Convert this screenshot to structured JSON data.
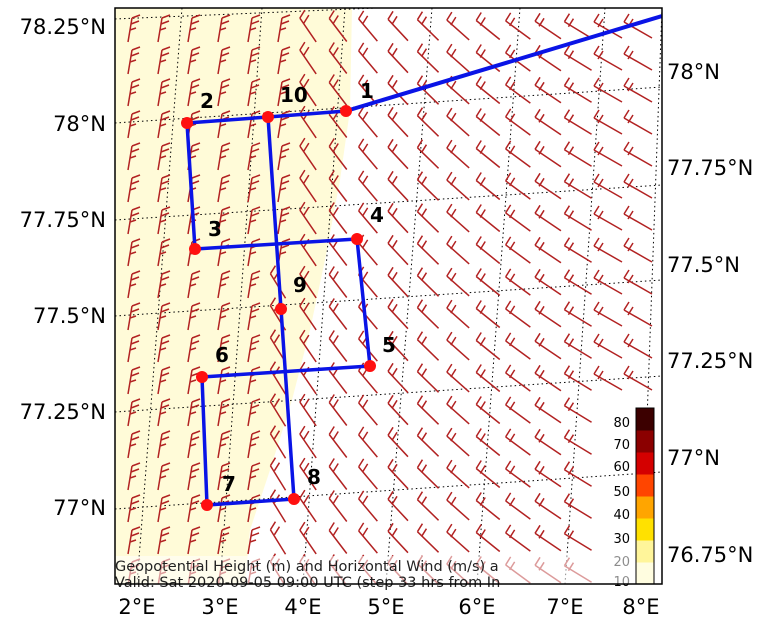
{
  "map": {
    "lat_labels_left": [
      "78.25°N",
      "78°N",
      "77.75°N",
      "77.5°N",
      "77.25°N",
      "77°N"
    ],
    "lat_labels_right": [
      "78°N",
      "77.75°N",
      "77.5°N",
      "77.25°N",
      "77°N",
      "76.75°N"
    ],
    "lon_labels": [
      "2°E",
      "3°E",
      "4°E",
      "5°E",
      "6°E",
      "7°E",
      "8°E"
    ],
    "caption_line1": "Geopotential Height (m) and Horizontal Wind (m/s) a",
    "caption_line2": "Valid: Sat 2020-09-05 09:00 UTC (step 33 hrs from In",
    "colors": {
      "route": "#0a14e6",
      "waypoint": "#ff1010",
      "barb": "#b22222",
      "land": "#fffbd8"
    },
    "colorbar": {
      "ticks": [
        "80",
        "70",
        "60",
        "50",
        "40",
        "30",
        "20",
        "10"
      ],
      "colors": [
        "#fffde0",
        "#fff59a",
        "#ffe100",
        "#ffa500",
        "#ff4500",
        "#d40000",
        "#8b0000",
        "#3c0000"
      ]
    },
    "waypoints": [
      {
        "id": "1",
        "label": "1"
      },
      {
        "id": "2",
        "label": "2"
      },
      {
        "id": "3",
        "label": "3"
      },
      {
        "id": "4",
        "label": "4"
      },
      {
        "id": "5",
        "label": "5"
      },
      {
        "id": "6",
        "label": "6"
      },
      {
        "id": "7",
        "label": "7"
      },
      {
        "id": "8",
        "label": "8"
      },
      {
        "id": "9",
        "label": "9"
      },
      {
        "id": "10",
        "label": "10"
      }
    ],
    "route_order": [
      "1",
      "10",
      "2",
      "3",
      "4",
      "5",
      "6",
      "7",
      "8",
      "9",
      "10"
    ]
  }
}
